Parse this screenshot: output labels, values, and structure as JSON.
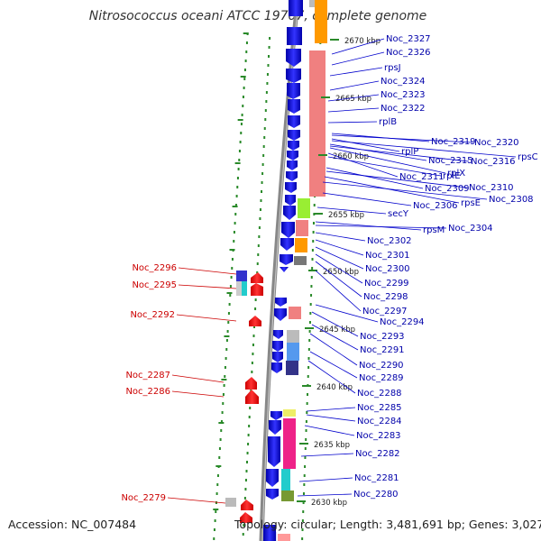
{
  "title": "Nitrosococcus oceani ATCC 19707, complete genome",
  "accession": "Accession: NC_007484",
  "topology": "Topology: circular; Length: 3,481,691 bp; Genes: 3,027",
  "colors": {
    "forward_cds": "#0000dd",
    "reverse_cds": "#e00000",
    "label_forward": "#0000aa",
    "label_reverse": "#cc0000",
    "backbone": "#888888",
    "tick_dot": "#2a8a2a",
    "cog_pink": "#f08080",
    "cog_orange": "#ff9900",
    "cog_green": "#99ee33",
    "cog_magenta": "#ee2288",
    "cog_cyan": "#22cccc",
    "cog_olive": "#779933",
    "cog_gray": "#777777",
    "cog_navy": "#333388"
  },
  "ticks": [
    "2670 kbp",
    "2665 kbp",
    "2660 kbp",
    "2655 kbp",
    "2650 kbp",
    "2645 kbp",
    "2640 kbp",
    "2635 kbp",
    "2630 kbp"
  ],
  "forward_labels": [
    "Noc_2327",
    "Noc_2326",
    "rpsJ",
    "Noc_2324",
    "Noc_2323",
    "Noc_2322",
    "rplB",
    "Noc_2319",
    "Noc_2320",
    "rplP",
    "rpsC",
    "Noc_2315",
    "Noc_2316",
    "rplX",
    "Noc_2311",
    "rplE",
    "Noc_2309",
    "Noc_2310",
    "rpsE",
    "Noc_2308",
    "Noc_2306",
    "secY",
    "rpsM",
    "Noc_2304",
    "Noc_2302",
    "Noc_2301",
    "Noc_2300",
    "Noc_2299",
    "Noc_2298",
    "Noc_2297",
    "Noc_2294",
    "Noc_2293",
    "Noc_2291",
    "Noc_2290",
    "Noc_2289",
    "Noc_2288",
    "Noc_2285",
    "Noc_2284",
    "Noc_2283",
    "Noc_2282",
    "Noc_2281",
    "Noc_2280"
  ],
  "reverse_labels": [
    "Noc_2296",
    "Noc_2295",
    "Noc_2292",
    "Noc_2287",
    "Noc_2286",
    "Noc_2279"
  ]
}
